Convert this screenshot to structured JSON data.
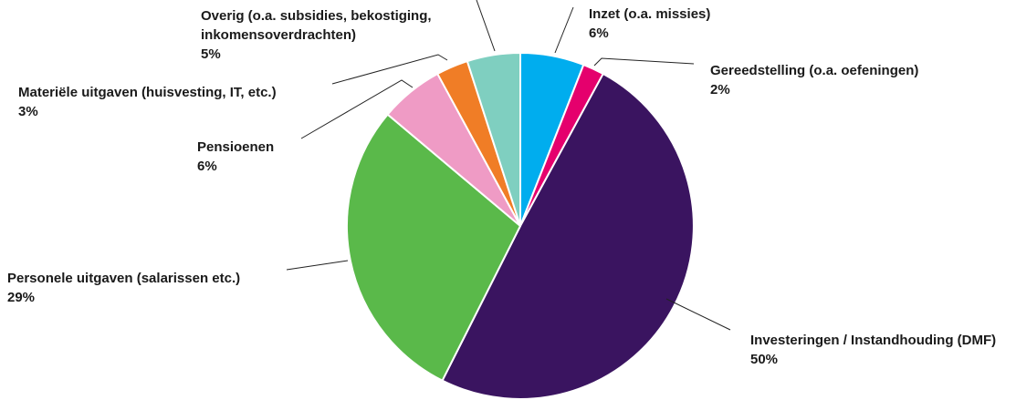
{
  "chart_data": {
    "type": "pie",
    "title": "",
    "start_angle_deg": 0,
    "direction": "clockwise",
    "slices": [
      {
        "label": "Inzet (o.a. missies)",
        "value": 6,
        "value_text": "6%",
        "color": "#00adee"
      },
      {
        "label": "Gereedstelling (o.a. oefeningen)",
        "value": 2,
        "value_text": "2%",
        "color": "#e5006d"
      },
      {
        "label": "Investeringen / Instandhouding (DMF)",
        "value": 50,
        "value_text": "50%",
        "color": "#3a1460"
      },
      {
        "label": "Personele uitgaven (salarissen etc.)",
        "value": 29,
        "value_text": "29%",
        "color": "#5ab94a"
      },
      {
        "label": "Pensioenen",
        "value": 6,
        "value_text": "6%",
        "color": "#ef9bc5"
      },
      {
        "label": "Materiële uitgaven (huisvesting, IT, etc.)",
        "value": 3,
        "value_text": "3%",
        "color": "#f07d26"
      },
      {
        "label": "Overig (o.a. subsidies, bekostiging, inkomensoverdrachten)",
        "value": 5,
        "value_text": "5%",
        "color": "#7fcfc0"
      }
    ]
  }
}
